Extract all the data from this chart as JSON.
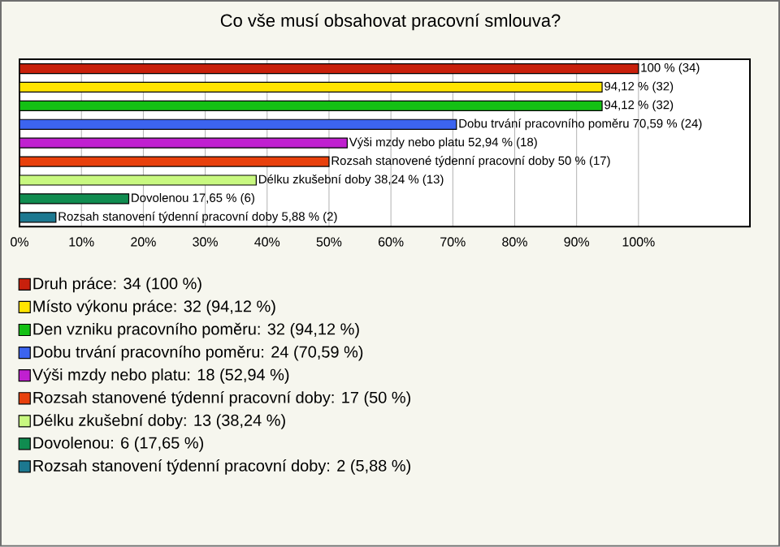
{
  "chart_data": {
    "type": "bar",
    "orientation": "horizontal",
    "title": "Co vše musí obsahovat pracovní smlouva?",
    "categories": [
      null,
      null,
      null,
      null,
      null,
      null,
      null,
      null,
      null
    ],
    "series": [
      {
        "name": "Druh práce: 34 (100 %)",
        "color": "#c8200c",
        "values": [
          100,
          null,
          null,
          null,
          null,
          null,
          null,
          null,
          null
        ],
        "value_labels": [
          "100 % (34)",
          null,
          null,
          null,
          null,
          null,
          null,
          null,
          null
        ]
      },
      {
        "name": "Místo výkonu práce: 32 (94,12 %)",
        "color": "#ffe400",
        "values": [
          null,
          94.12,
          null,
          null,
          null,
          null,
          null,
          null,
          null
        ],
        "value_labels": [
          null,
          "94,12 % (32)",
          null,
          null,
          null,
          null,
          null,
          null,
          null
        ]
      },
      {
        "name": "Den vzniku pracovního poměru: 32 (94,12 %)",
        "color": "#14c014",
        "values": [
          null,
          null,
          94.12,
          null,
          null,
          null,
          null,
          null,
          null
        ],
        "value_labels": [
          null,
          null,
          "94,12 % (32)",
          null,
          null,
          null,
          null,
          null,
          null
        ]
      },
      {
        "name": "Dobu trvání pracovního poměru: 24 (70,59 %)",
        "color": "#3c64f0",
        "values": [
          null,
          null,
          null,
          70.59,
          null,
          null,
          null,
          null,
          null
        ],
        "value_labels": [
          null,
          null,
          null,
          "Dobu trvání pracovního poměru 70,59 % (24)",
          null,
          null,
          null,
          null,
          null
        ]
      },
      {
        "name": "Výši mzdy nebo platu: 18 (52,94 %)",
        "color": "#c020d0",
        "values": [
          null,
          null,
          null,
          null,
          52.94,
          null,
          null,
          null,
          null
        ],
        "value_labels": [
          null,
          null,
          null,
          null,
          "Výši mzdy nebo platu 52,94 % (18)",
          null,
          null,
          null,
          null
        ]
      },
      {
        "name": "Rozsah stanovené týdenní pracovní doby: 17 (50 %)",
        "color": "#e8400c",
        "values": [
          null,
          null,
          null,
          null,
          null,
          50,
          null,
          null,
          null
        ],
        "value_labels": [
          null,
          null,
          null,
          null,
          null,
          "Rozsah stanovené týdenní pracovní doby 50 % (17)",
          null,
          null,
          null
        ]
      },
      {
        "name": "Délku zkušební doby: 13 (38,24 %)",
        "color": "#c8f880",
        "values": [
          null,
          null,
          null,
          null,
          null,
          null,
          38.24,
          null,
          null
        ],
        "value_labels": [
          null,
          null,
          null,
          null,
          null,
          null,
          "Délku zkušební doby 38,24 % (13)",
          null,
          null
        ]
      },
      {
        "name": "Dovolenou: 6 (17,65 %)",
        "color": "#108c50",
        "values": [
          null,
          null,
          null,
          null,
          null,
          null,
          null,
          17.65,
          null
        ],
        "value_labels": [
          null,
          null,
          null,
          null,
          null,
          null,
          null,
          "Dovolenou 17,65 % (6)",
          null
        ]
      },
      {
        "name": "Rozsah stanovení týdenní pracovní doby: 2 (5,88 %)",
        "color": "#1c7890",
        "values": [
          null,
          null,
          null,
          null,
          null,
          null,
          null,
          null,
          5.88
        ],
        "value_labels": [
          null,
          null,
          null,
          null,
          null,
          null,
          null,
          null,
          "Rozsah stanovení týdenní pracovní doby 5,88 % (2)"
        ]
      }
    ],
    "xlim": [
      0,
      118
    ],
    "xticks": [
      {
        "value": 0,
        "label": "0%"
      },
      {
        "value": 10,
        "label": "10%"
      },
      {
        "value": 20,
        "label": "20%"
      },
      {
        "value": 30,
        "label": "30%"
      },
      {
        "value": 40,
        "label": "40%"
      },
      {
        "value": 50,
        "label": "50%"
      },
      {
        "value": 60,
        "label": "60%"
      },
      {
        "value": 70,
        "label": "70%"
      },
      {
        "value": 80,
        "label": "80%"
      },
      {
        "value": 90,
        "label": "90%"
      },
      {
        "value": 100,
        "label": "100%"
      }
    ],
    "grid": "x",
    "legend": "bottom",
    "tick_labels": "x"
  }
}
